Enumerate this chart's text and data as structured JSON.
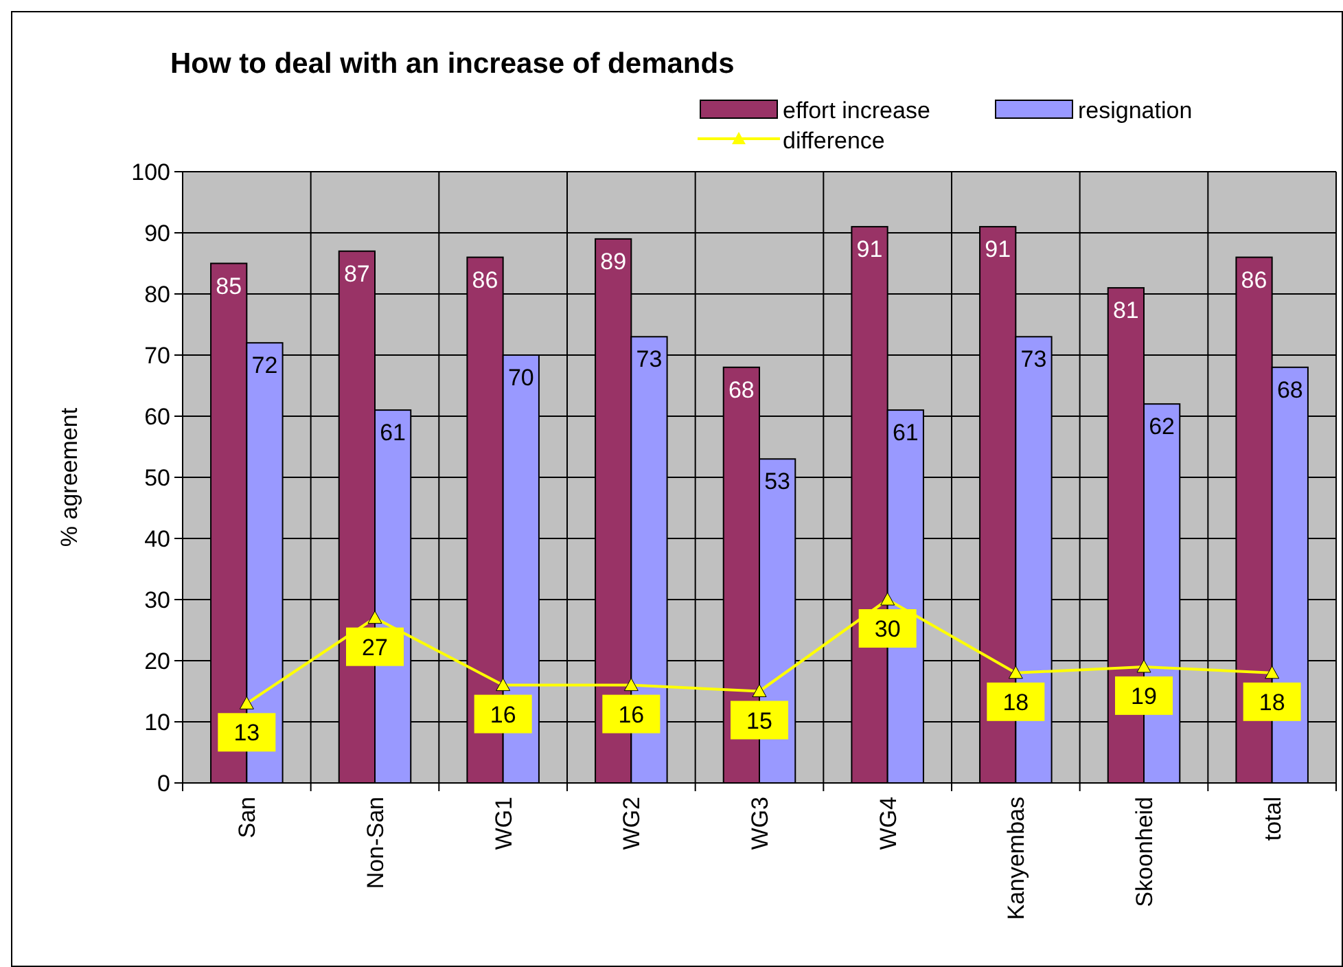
{
  "chart_data": {
    "type": "bar",
    "title": "How to deal with an increase of demands",
    "ylabel": "% agreement",
    "categories": [
      "San",
      "Non-San",
      "WG1",
      "WG2",
      "WG3",
      "WG4",
      "Kanyembas",
      "Skoonheid",
      "total"
    ],
    "series": [
      {
        "name": "effort increase",
        "color": "#993366",
        "values": [
          85,
          87,
          86,
          89,
          68,
          91,
          91,
          81,
          86
        ]
      },
      {
        "name": "resignation",
        "color": "#9999ff",
        "values": [
          72,
          61,
          70,
          73,
          53,
          61,
          73,
          62,
          68
        ]
      },
      {
        "name": "difference",
        "type": "line",
        "color": "#ffff00",
        "marker": "triangle",
        "values": [
          13,
          27,
          16,
          16,
          15,
          30,
          18,
          19,
          18
        ]
      }
    ],
    "ylim": [
      0,
      100
    ],
    "yticks": [
      0,
      10,
      20,
      30,
      40,
      50,
      60,
      70,
      80,
      90,
      100
    ],
    "grid": true,
    "legend": "top right",
    "data_labels": true
  }
}
